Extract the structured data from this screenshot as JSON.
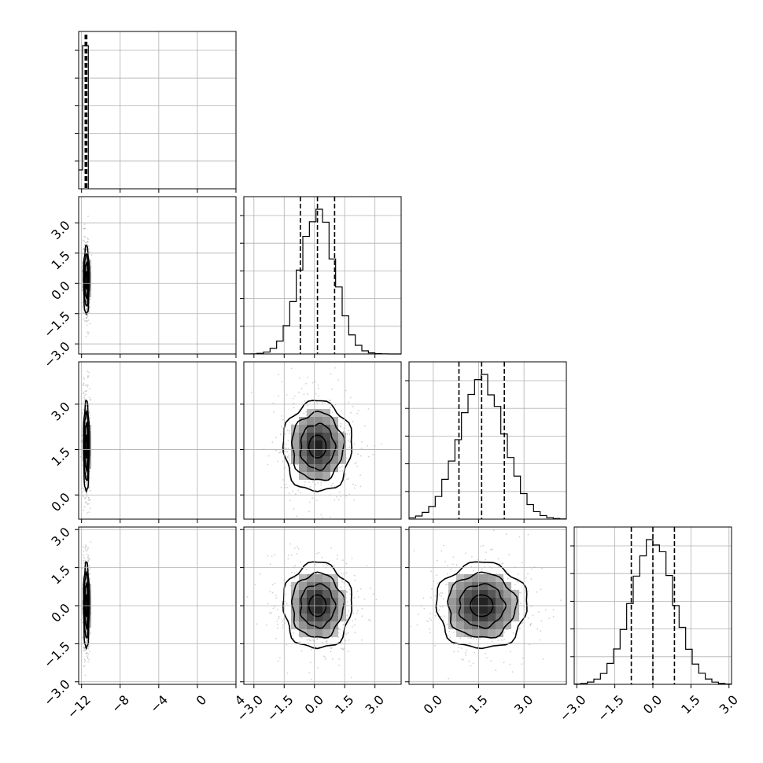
{
  "chart_data": {
    "type": "corner",
    "parameters": [
      {
        "ticks": [
          -12,
          -8,
          -4,
          0,
          4
        ],
        "tick_labels": [
          "−12",
          "−8",
          "−4",
          "0",
          "4"
        ],
        "range": [
          -12.3,
          4.0
        ]
      },
      {
        "ticks": [
          -3.0,
          -1.5,
          0.0,
          1.5,
          3.0
        ],
        "tick_labels": [
          "−3.0",
          "−1.5",
          "0.0",
          "1.5",
          "3.0"
        ],
        "range": [
          -3.5,
          4.3
        ]
      },
      {
        "ticks": [
          0.0,
          1.5,
          3.0
        ],
        "tick_labels": [
          "0.0",
          "1.5",
          "3.0"
        ],
        "range": [
          -0.8,
          4.4
        ]
      },
      {
        "ticks": [
          -3.0,
          -1.5,
          0.0,
          1.5,
          3.0
        ],
        "tick_labels": [
          "−3.0",
          "−1.5",
          "0.0",
          "1.5",
          "3.0"
        ],
        "range": [
          -3.1,
          3.1
        ]
      }
    ],
    "marginals": [
      {
        "param": 0,
        "quantiles": [
          -11.55,
          -11.5,
          -11.45
        ]
      },
      {
        "param": 1,
        "mean": 0.15,
        "std": 0.85,
        "quantiles": [
          -0.7,
          0.15,
          1.0
        ]
      },
      {
        "param": 2,
        "mean": 1.6,
        "std": 0.75,
        "quantiles": [
          0.85,
          1.6,
          2.35
        ]
      },
      {
        "param": 3,
        "mean": 0.0,
        "std": 0.85,
        "quantiles": [
          -0.85,
          0.0,
          0.85
        ]
      }
    ],
    "pairs": [
      {
        "x_param": 0,
        "y_param": 1,
        "center": [
          -11.5,
          0.15
        ],
        "sigma": [
          0.15,
          0.85
        ]
      },
      {
        "x_param": 0,
        "y_param": 2,
        "center": [
          -11.5,
          1.6
        ],
        "sigma": [
          0.15,
          0.75
        ]
      },
      {
        "x_param": 0,
        "y_param": 3,
        "center": [
          -11.5,
          0.0
        ],
        "sigma": [
          0.15,
          0.85
        ]
      },
      {
        "x_param": 1,
        "y_param": 2,
        "center": [
          0.15,
          1.6
        ],
        "sigma": [
          0.85,
          0.75
        ]
      },
      {
        "x_param": 1,
        "y_param": 3,
        "center": [
          0.15,
          0.0
        ],
        "sigma": [
          0.85,
          0.85
        ]
      },
      {
        "x_param": 2,
        "y_param": 3,
        "center": [
          1.6,
          0.0
        ],
        "sigma": [
          0.75,
          0.85
        ]
      }
    ],
    "contour_levels_sigma": [
      0.5,
      1.0,
      1.5,
      2.0
    ],
    "grid": true,
    "colors": {
      "line": "#000000",
      "scatter": "#9a9a9a",
      "grid": "#b0b0b0"
    }
  }
}
